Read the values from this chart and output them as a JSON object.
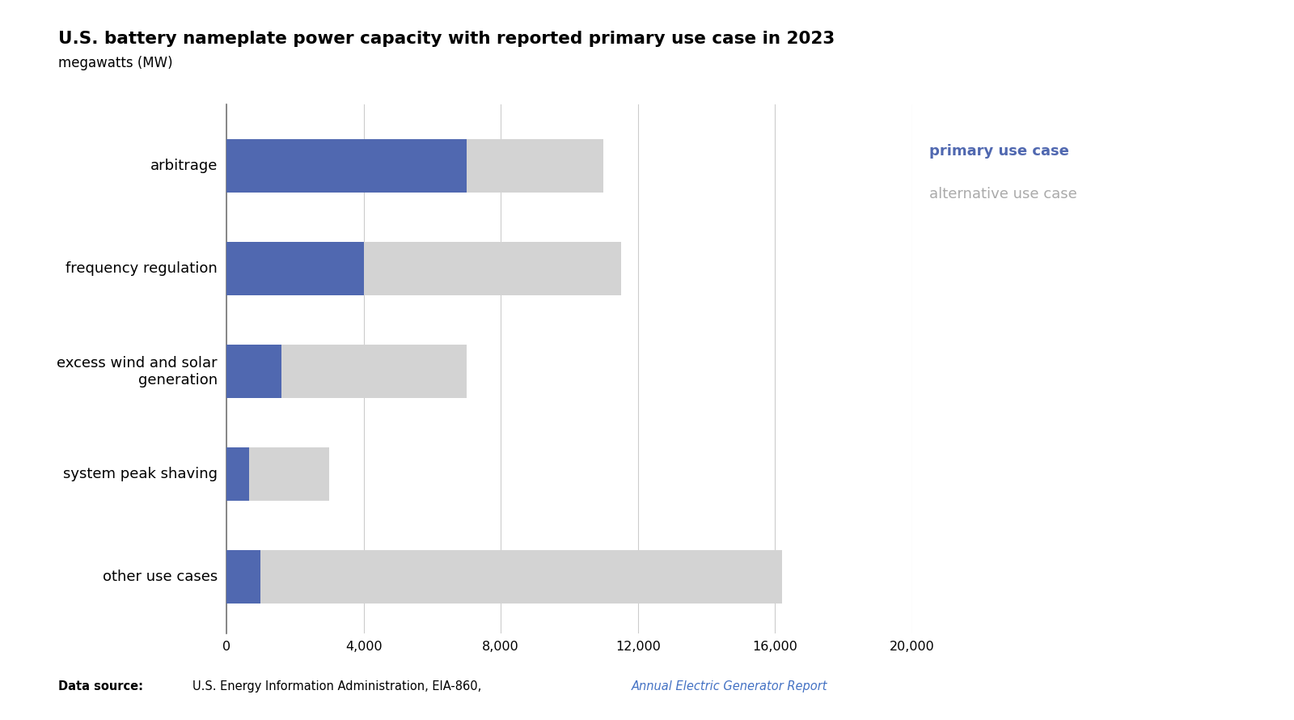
{
  "title_line1": "U.S. battery nameplate power capacity with reported primary use case in 2023",
  "title_line2": "megawatts (MW)",
  "categories": [
    "other use cases",
    "system peak shaving",
    "excess wind and solar\ngeneration",
    "frequency regulation",
    "arbitrage"
  ],
  "primary_values": [
    1000,
    650,
    1600,
    4000,
    7000
  ],
  "total_values": [
    16200,
    3000,
    7000,
    11500,
    11000
  ],
  "primary_color": "#5068B0",
  "alternative_color": "#D3D3D3",
  "legend_primary_label": "primary use case",
  "legend_primary_color": "#5068B0",
  "legend_alternative_label": "alternative use case",
  "legend_alternative_color": "#AAAAAA",
  "xlim": [
    0,
    20000
  ],
  "xticks": [
    0,
    4000,
    8000,
    12000,
    16000,
    20000
  ],
  "xtick_labels": [
    "0",
    "4,000",
    "8,000",
    "12,000",
    "16,000",
    "20,000"
  ],
  "grid_color": "#CCCCCC",
  "bar_height": 0.52,
  "background_color": "#FFFFFF",
  "data_source_link_color": "#4472C4",
  "title_fontsize": 15.5,
  "ytick_fontsize": 13,
  "xtick_fontsize": 11.5
}
